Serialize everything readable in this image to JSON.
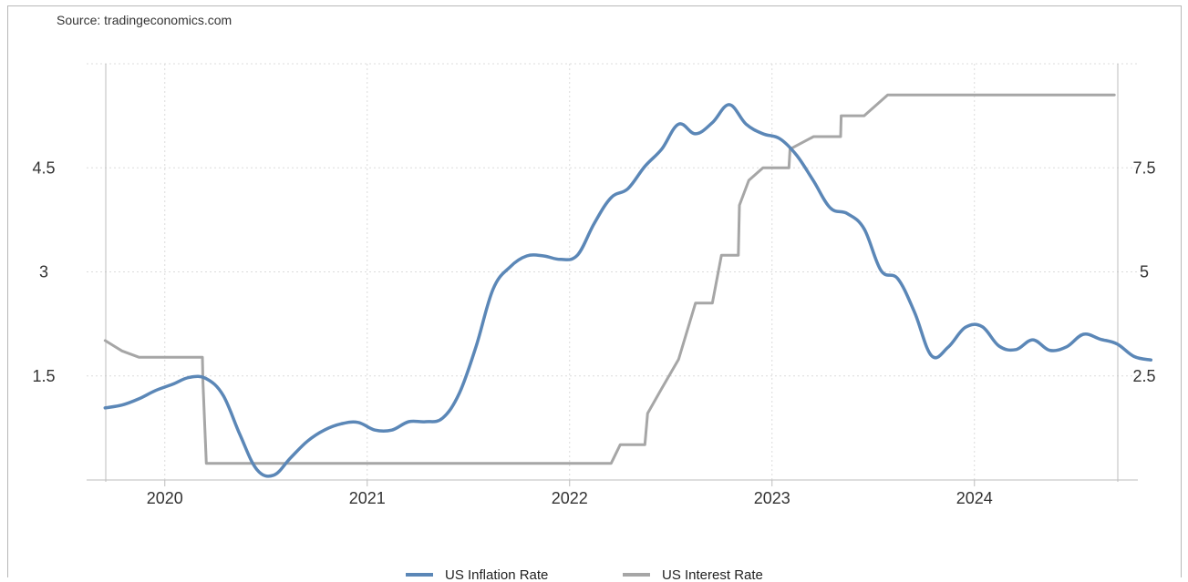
{
  "source_text": "Source: tradingeconomics.com",
  "colors": {
    "inflation": "#5b87b7",
    "interest": "#a6a6a6",
    "grid": "#dcdcdc",
    "axis": "#bdbdbd"
  },
  "chart_data": {
    "type": "line",
    "title": "",
    "xlabel": "",
    "ylabel": "",
    "x_ticks": [
      "2020",
      "2021",
      "2022",
      "2023",
      "2024"
    ],
    "y_left_ticks": [
      "1.5",
      "3",
      "4.5"
    ],
    "y_right_ticks": [
      "2.5",
      "5",
      "7.5"
    ],
    "ylim_left": [
      0,
      6
    ],
    "ylim_right": [
      0,
      10
    ],
    "grid": true,
    "legend_position": "bottom",
    "series": [
      {
        "name": "US Inflation Rate",
        "axis": "left",
        "step": false,
        "points": [
          [
            "2019-09",
            1.04
          ],
          [
            "2019-10",
            1.08
          ],
          [
            "2019-11",
            1.17
          ],
          [
            "2019-12",
            1.29
          ],
          [
            "2020-01",
            1.38
          ],
          [
            "2020-02",
            1.48
          ],
          [
            "2020-03",
            1.46
          ],
          [
            "2020-04",
            1.22
          ],
          [
            "2020-05",
            0.65
          ],
          [
            "2020-06",
            0.15
          ],
          [
            "2020-07",
            0.07
          ],
          [
            "2020-08",
            0.32
          ],
          [
            "2020-09",
            0.56
          ],
          [
            "2020-10",
            0.72
          ],
          [
            "2020-11",
            0.81
          ],
          [
            "2020-12",
            0.83
          ],
          [
            "2021-01",
            0.72
          ],
          [
            "2021-02",
            0.72
          ],
          [
            "2021-03",
            0.84
          ],
          [
            "2021-04",
            0.84
          ],
          [
            "2021-05",
            0.89
          ],
          [
            "2021-06",
            1.25
          ],
          [
            "2021-07",
            1.93
          ],
          [
            "2021-08",
            2.75
          ],
          [
            "2021-09",
            3.07
          ],
          [
            "2021-10",
            3.23
          ],
          [
            "2021-11",
            3.23
          ],
          [
            "2021-12",
            3.18
          ],
          [
            "2022-01",
            3.24
          ],
          [
            "2022-02",
            3.7
          ],
          [
            "2022-03",
            4.07
          ],
          [
            "2022-04",
            4.2
          ],
          [
            "2022-05",
            4.52
          ],
          [
            "2022-06",
            4.77
          ],
          [
            "2022-07",
            5.13
          ],
          [
            "2022-08",
            4.99
          ],
          [
            "2022-09",
            5.15
          ],
          [
            "2022-10",
            5.41
          ],
          [
            "2022-11",
            5.13
          ],
          [
            "2022-12",
            4.99
          ],
          [
            "2023-01",
            4.92
          ],
          [
            "2023-02",
            4.68
          ],
          [
            "2023-03",
            4.31
          ],
          [
            "2023-04",
            3.92
          ],
          [
            "2023-05",
            3.84
          ],
          [
            "2023-06",
            3.62
          ],
          [
            "2023-07",
            3.02
          ],
          [
            "2023-08",
            2.9
          ],
          [
            "2023-09",
            2.41
          ],
          [
            "2023-10",
            1.79
          ],
          [
            "2023-11",
            1.92
          ],
          [
            "2023-12",
            2.2
          ],
          [
            "2024-01",
            2.21
          ],
          [
            "2024-02",
            1.93
          ],
          [
            "2024-03",
            1.88
          ],
          [
            "2024-04",
            2.02
          ],
          [
            "2024-05",
            1.87
          ],
          [
            "2024-06",
            1.92
          ],
          [
            "2024-07",
            2.1
          ],
          [
            "2024-08",
            2.03
          ],
          [
            "2024-09",
            1.96
          ],
          [
            "2024-10",
            1.78
          ],
          [
            "2024-11",
            1.73
          ]
        ]
      },
      {
        "name": "US Interest Rate",
        "axis": "right",
        "step": true,
        "points": [
          [
            "2019-09-15",
            3.35
          ],
          [
            "2019-10-15",
            3.1
          ],
          [
            "2019-11-15",
            2.95
          ],
          [
            "2019-12-15",
            2.95
          ],
          [
            "2020-02-15",
            2.95
          ],
          [
            "2020-03-08",
            2.95
          ],
          [
            "2020-03-09",
            2.35
          ],
          [
            "2020-03-15",
            0.4
          ],
          [
            "2022-03-15",
            0.4
          ],
          [
            "2022-04-01",
            0.85
          ],
          [
            "2022-05-15",
            0.85
          ],
          [
            "2022-05-20",
            1.6
          ],
          [
            "2022-06-15",
            2.2
          ],
          [
            "2022-07-15",
            2.9
          ],
          [
            "2022-08-15",
            4.25
          ],
          [
            "2022-09-15",
            4.25
          ],
          [
            "2022-10-01",
            5.4
          ],
          [
            "2022-11-01",
            5.4
          ],
          [
            "2022-11-03",
            6.6
          ],
          [
            "2022-11-20",
            7.2
          ],
          [
            "2022-12-15",
            7.5
          ],
          [
            "2023-02-01",
            7.5
          ],
          [
            "2023-02-03",
            7.95
          ],
          [
            "2023-03-15",
            8.25
          ],
          [
            "2023-05-03",
            8.25
          ],
          [
            "2023-05-04",
            8.75
          ],
          [
            "2023-06-15",
            8.75
          ],
          [
            "2023-07-27",
            9.25
          ],
          [
            "2024-09-10",
            9.25
          ]
        ]
      }
    ]
  }
}
